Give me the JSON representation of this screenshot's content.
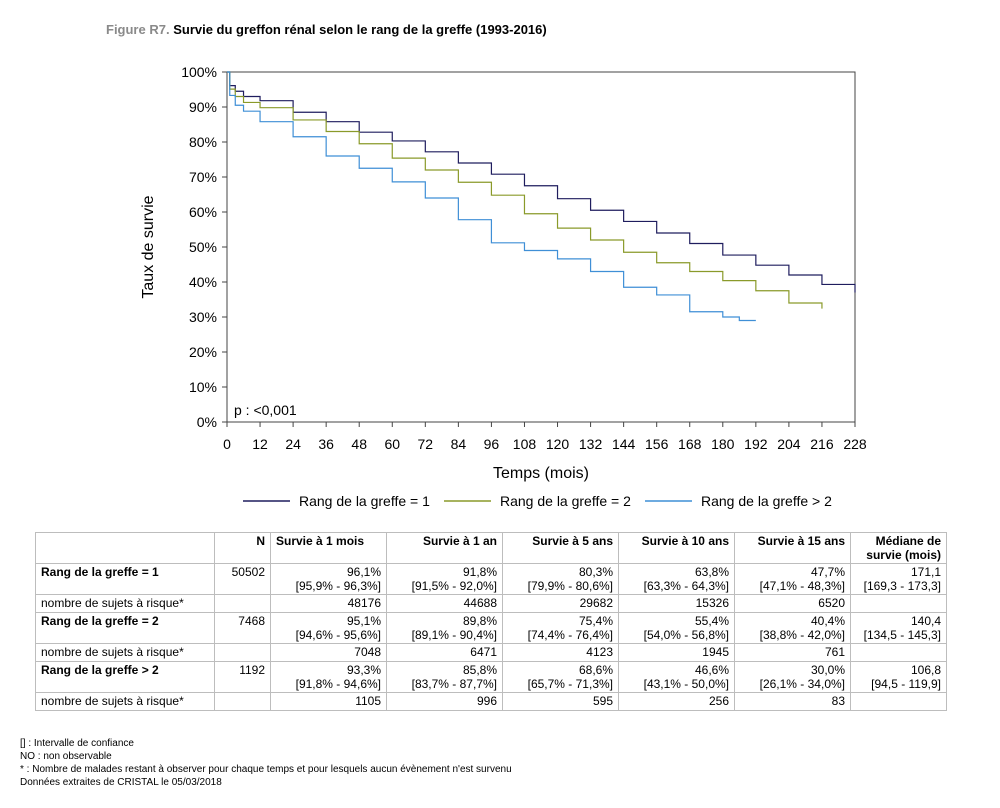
{
  "figure": {
    "label": "Figure R7.",
    "title": "Survie du greffon rénal selon le rang de la greffe (1993-2016)"
  },
  "chart_data": {
    "type": "line",
    "xlabel": "Temps (mois)",
    "ylabel": "Taux de survie",
    "xlim": [
      0,
      228
    ],
    "ylim": [
      0,
      100
    ],
    "x_ticks": [
      "0",
      "12",
      "24",
      "36",
      "48",
      "60",
      "72",
      "84",
      "96",
      "108",
      "120",
      "132",
      "144",
      "156",
      "168",
      "180",
      "192",
      "204",
      "216",
      "228"
    ],
    "y_ticks": [
      "0%",
      "10%",
      "20%",
      "30%",
      "40%",
      "50%",
      "60%",
      "70%",
      "80%",
      "90%",
      "100%"
    ],
    "annotation": "p : <0,001",
    "legend_position": "bottom",
    "series": [
      {
        "name": "Rang de la greffe = 1",
        "color": "#1f1d5e",
        "x": [
          0,
          1,
          3,
          6,
          12,
          24,
          36,
          48,
          60,
          72,
          84,
          96,
          108,
          120,
          132,
          144,
          156,
          168,
          180,
          192,
          204,
          216,
          228
        ],
        "y": [
          100,
          96.1,
          94.5,
          93,
          91.8,
          88.5,
          85.8,
          82.8,
          80.3,
          77.2,
          74,
          70.8,
          67.5,
          63.8,
          60.5,
          57.3,
          54,
          51,
          47.7,
          44.8,
          42,
          39.3,
          37
        ]
      },
      {
        "name": "Rang de la greffe = 2",
        "color": "#8a9a2a",
        "x": [
          0,
          1,
          3,
          6,
          12,
          24,
          36,
          48,
          60,
          72,
          84,
          96,
          108,
          120,
          132,
          144,
          156,
          168,
          180,
          192,
          204,
          216
        ],
        "y": [
          100,
          95.1,
          93,
          91.3,
          89.8,
          86.3,
          83,
          79.5,
          75.4,
          72,
          68.5,
          64.8,
          59.5,
          55.4,
          52,
          48.5,
          45.5,
          43,
          40.4,
          37.5,
          34,
          32.4
        ]
      },
      {
        "name": "Rang de la greffe > 2",
        "color": "#3f8fd6",
        "x": [
          0,
          1,
          3,
          6,
          12,
          24,
          36,
          48,
          60,
          72,
          84,
          96,
          108,
          120,
          132,
          144,
          156,
          168,
          180,
          186,
          192
        ],
        "y": [
          100,
          93.3,
          90.5,
          88.8,
          85.8,
          81.5,
          76,
          72.5,
          68.6,
          64,
          57.8,
          51.2,
          49,
          46.6,
          43,
          38.5,
          36.3,
          31.5,
          30,
          29,
          29
        ]
      }
    ]
  },
  "table": {
    "headers": [
      "",
      "N",
      "Survie à 1 mois",
      "Survie à 1 an",
      "Survie à 5 ans",
      "Survie à 10 ans",
      "Survie à 15 ans",
      "Médiane de survie (mois)"
    ],
    "groups": [
      {
        "label": "Rang de la greffe = 1",
        "n": "50502",
        "vals": [
          "96,1%",
          "91,8%",
          "80,3%",
          "63,8%",
          "47,7%",
          "171,1"
        ],
        "ci": [
          "[95,9% - 96,3%]",
          "[91,5% - 92,0%]",
          "[79,9% - 80,6%]",
          "[63,3% - 64,3%]",
          "[47,1% - 48,3%]",
          "[169,3 - 173,3]"
        ],
        "risk_label": "nombre de sujets à risque*",
        "risk": [
          "48176",
          "44688",
          "29682",
          "15326",
          "6520",
          ""
        ]
      },
      {
        "label": "Rang de la greffe = 2",
        "n": "7468",
        "vals": [
          "95,1%",
          "89,8%",
          "75,4%",
          "55,4%",
          "40,4%",
          "140,4"
        ],
        "ci": [
          "[94,6% - 95,6%]",
          "[89,1% - 90,4%]",
          "[74,4% - 76,4%]",
          "[54,0% - 56,8%]",
          "[38,8% - 42,0%]",
          "[134,5 - 145,3]"
        ],
        "risk_label": "nombre de sujets à risque*",
        "risk": [
          "7048",
          "6471",
          "4123",
          "1945",
          "761",
          ""
        ]
      },
      {
        "label": "Rang de la greffe > 2",
        "n": "1192",
        "vals": [
          "93,3%",
          "85,8%",
          "68,6%",
          "46,6%",
          "30,0%",
          "106,8"
        ],
        "ci": [
          "[91,8% - 94,6%]",
          "[83,7% - 87,7%]",
          "[65,7% - 71,3%]",
          "[43,1% - 50,0%]",
          "[26,1% - 34,0%]",
          "[94,5 - 119,9]"
        ],
        "risk_label": "nombre de sujets à risque*",
        "risk": [
          "1105",
          "996",
          "595",
          "256",
          "83",
          ""
        ]
      }
    ]
  },
  "notes": [
    "[] : Intervalle de confiance",
    "NO : non observable",
    "* : Nombre de malades restant à observer pour chaque temps et pour lesquels aucun évènement n'est survenu",
    "Données extraites de CRISTAL le 05/03/2018"
  ]
}
